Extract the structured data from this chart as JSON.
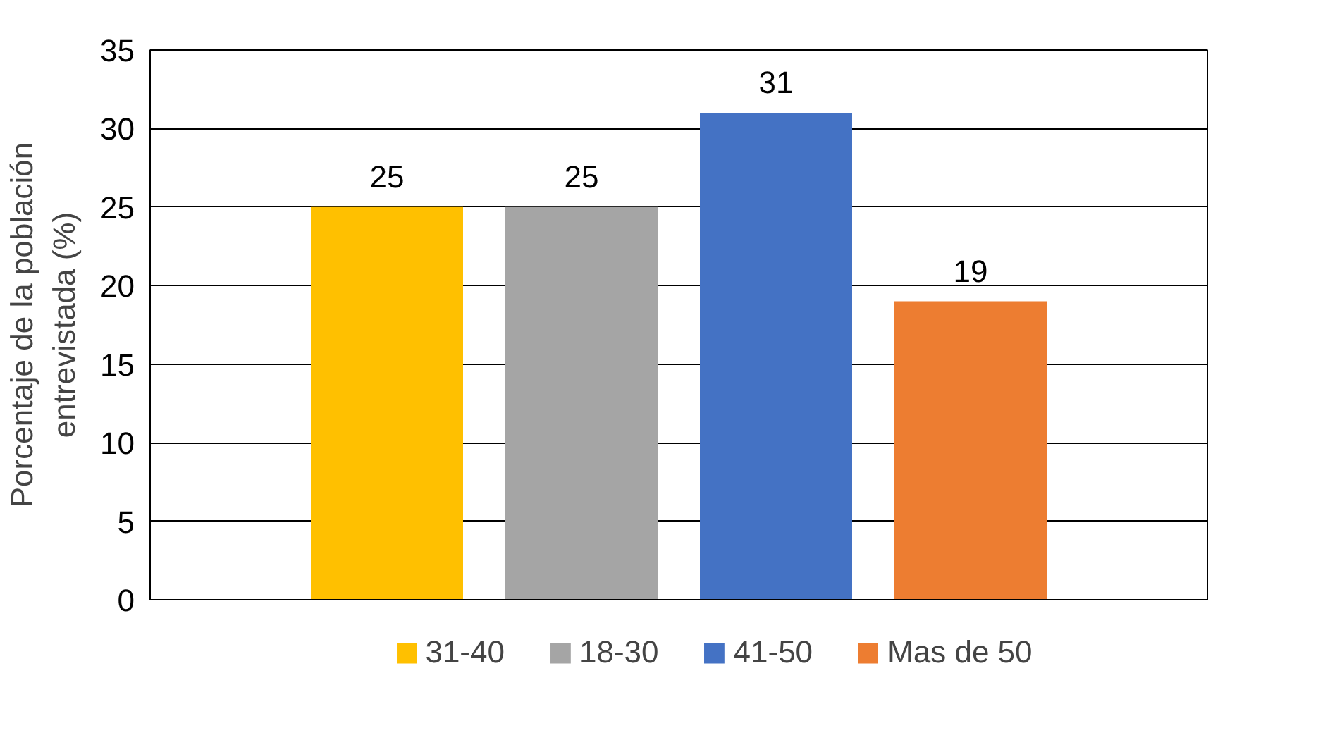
{
  "chart_data": {
    "type": "bar",
    "ylabel": "Porcentaje de la población\nentrevistada (%)",
    "categories": [
      null
    ],
    "series": [
      {
        "name": "31-40",
        "color": "#ffc000",
        "values": [
          25
        ]
      },
      {
        "name": "18-30",
        "color": "#a5a5a5",
        "values": [
          25
        ]
      },
      {
        "name": "41-50",
        "color": "#4472c4",
        "values": [
          31
        ]
      },
      {
        "name": "Mas de 50",
        "color": "#ed7d31",
        "values": [
          19
        ]
      }
    ],
    "ylim": [
      0,
      35
    ],
    "yticks": [
      0,
      5,
      10,
      15,
      20,
      25,
      30,
      35
    ],
    "grid": "y",
    "legend": "bottom",
    "data_labels": true
  }
}
